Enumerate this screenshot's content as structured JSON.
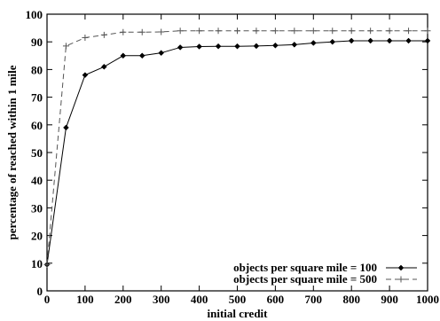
{
  "chart_data": {
    "type": "line",
    "title": "",
    "xlabel": "initial credit",
    "ylabel": "percentage of reached within 1 mile",
    "xlim": [
      0,
      1000
    ],
    "ylim": [
      0,
      100
    ],
    "xticks": [
      0,
      100,
      200,
      300,
      400,
      500,
      600,
      700,
      800,
      900,
      1000
    ],
    "yticks": [
      0,
      10,
      20,
      30,
      40,
      50,
      60,
      70,
      80,
      90,
      100
    ],
    "grid": false,
    "legend_position": "bottom-right",
    "series": [
      {
        "name": "objects per square mile = 100",
        "color": "#000000",
        "line_style": "solid",
        "marker": "diamond",
        "x": [
          0,
          50,
          100,
          150,
          200,
          250,
          300,
          350,
          400,
          450,
          500,
          550,
          600,
          650,
          700,
          750,
          800,
          850,
          900,
          950,
          1000
        ],
        "y": [
          9.5,
          59,
          78,
          81,
          85,
          85,
          86,
          88,
          88.3,
          88.4,
          88.4,
          88.5,
          88.7,
          89,
          89.6,
          90,
          90.4,
          90.4,
          90.4,
          90.4,
          90.4
        ]
      },
      {
        "name": "objects per square mile = 500",
        "color": "#555555",
        "line_style": "dashed",
        "marker": "plus",
        "x": [
          0,
          50,
          100,
          150,
          200,
          250,
          300,
          350,
          400,
          450,
          500,
          550,
          600,
          650,
          700,
          750,
          800,
          850,
          900,
          950,
          1000
        ],
        "y": [
          9.5,
          88.5,
          91.5,
          92.5,
          93.5,
          93.5,
          93.6,
          94,
          94,
          94,
          94,
          94,
          94,
          94,
          94,
          94,
          94,
          94,
          94,
          94,
          94
        ]
      }
    ]
  }
}
